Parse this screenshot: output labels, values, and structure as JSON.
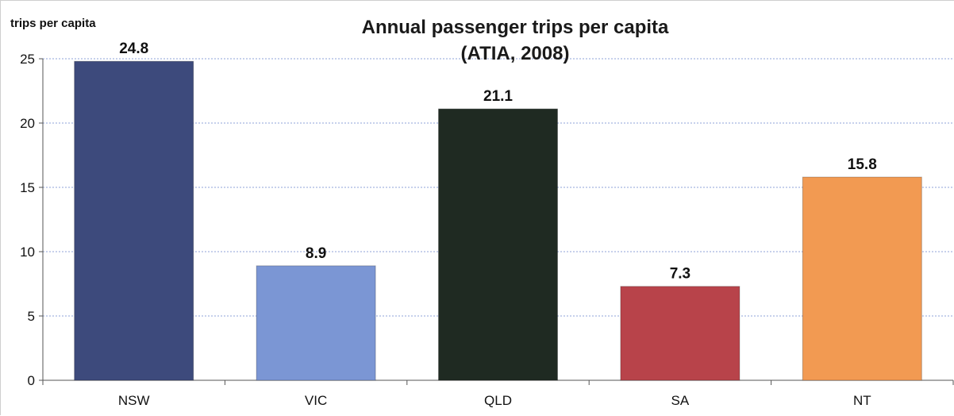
{
  "chart_data": {
    "type": "bar",
    "title": "Annual passenger trips per capita",
    "subtitle": "(ATIA, 2008)",
    "xlabel": "",
    "ylabel": "trips per capita",
    "ylim": [
      0,
      25
    ],
    "yticks": [
      0,
      5,
      10,
      15,
      20,
      25
    ],
    "grid": true,
    "categories": [
      "NSW",
      "VIC",
      "QLD",
      "SA",
      "NT"
    ],
    "values": [
      24.8,
      8.9,
      21.1,
      7.3,
      15.8
    ],
    "data_labels": [
      "24.8",
      "8.9",
      "21.1",
      "7.3",
      "15.8"
    ],
    "colors": [
      "#3d4a7c",
      "#7b96d4",
      "#1f2a22",
      "#b8434a",
      "#f29a52"
    ]
  }
}
